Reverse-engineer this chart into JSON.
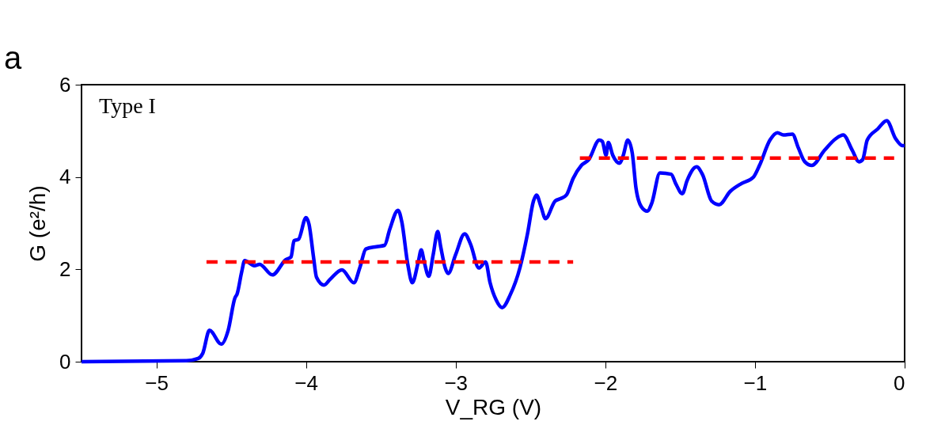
{
  "chart_data": {
    "type": "line",
    "xlabel": "V_RG (V)",
    "ylabel": "G (e²/h)",
    "annotations": [
      "a",
      "Type I"
    ],
    "xlim": [
      -5.5,
      0
    ],
    "ylim": [
      0,
      6
    ],
    "xticks": [
      {
        "value": -5,
        "label": "−5"
      },
      {
        "value": -4,
        "label": "−4"
      },
      {
        "value": -3,
        "label": "−3"
      },
      {
        "value": -2,
        "label": "−2"
      },
      {
        "value": -1,
        "label": "−1"
      },
      0
    ],
    "yticks": [
      0,
      2,
      4,
      6
    ],
    "grid": false,
    "marker": "none",
    "series": [
      {
        "color": "#0000ff",
        "line_style": "solid",
        "x": [
          -5.5,
          -4.8,
          -4.72,
          -4.69,
          -4.645,
          -4.566,
          -4.52,
          -4.475,
          -4.46,
          -4.43,
          -4.41,
          -4.345,
          -4.31,
          -4.225,
          -4.135,
          -4.1,
          -4.08,
          -4.05,
          -4.0,
          -3.98,
          -3.95,
          -3.93,
          -3.88,
          -3.84,
          -3.76,
          -3.68,
          -3.64,
          -3.6,
          -3.53,
          -3.475,
          -3.44,
          -3.385,
          -3.36,
          -3.32,
          -3.29,
          -3.25,
          -3.23,
          -3.21,
          -3.18,
          -3.15,
          -3.12,
          -3.1,
          -3.07,
          -3.05,
          -3.0,
          -2.94,
          -2.9,
          -2.845,
          -2.8,
          -2.77,
          -2.73,
          -2.69,
          -2.635,
          -2.57,
          -2.52,
          -2.48,
          -2.46,
          -2.43,
          -2.4,
          -2.335,
          -2.3,
          -2.26,
          -2.215,
          -2.16,
          -2.11,
          -2.04,
          -2.02,
          -1.995,
          -1.98,
          -1.95,
          -1.905,
          -1.88,
          -1.85,
          -1.82,
          -1.795,
          -1.76,
          -1.72,
          -1.69,
          -1.635,
          -1.56,
          -1.53,
          -1.485,
          -1.454,
          -1.39,
          -1.35,
          -1.29,
          -1.24,
          -1.165,
          -1.09,
          -1.01,
          -0.97,
          -0.9,
          -0.85,
          -0.81,
          -0.75,
          -0.71,
          -0.667,
          -0.62,
          -0.535,
          -0.46,
          -0.41,
          -0.35,
          -0.305,
          -0.28,
          -0.25,
          -0.18,
          -0.12,
          -0.06,
          -0.015,
          0
        ],
        "values": [
          0,
          0.02,
          0.07,
          0.18,
          0.68,
          0.38,
          0.68,
          1.38,
          1.47,
          1.94,
          2.19,
          2.08,
          2.11,
          1.88,
          2.21,
          2.27,
          2.62,
          2.65,
          3.12,
          2.98,
          2.27,
          1.83,
          1.66,
          1.78,
          1.99,
          1.71,
          2.04,
          2.44,
          2.49,
          2.52,
          2.87,
          3.28,
          3.03,
          2.11,
          1.71,
          2.16,
          2.42,
          2.16,
          1.85,
          2.32,
          2.82,
          2.49,
          2.03,
          1.91,
          2.32,
          2.77,
          2.54,
          2.03,
          2.16,
          1.71,
          1.34,
          1.17,
          1.45,
          2.04,
          2.77,
          3.48,
          3.61,
          3.36,
          3.1,
          3.48,
          3.53,
          3.61,
          3.97,
          4.25,
          4.38,
          4.8,
          4.77,
          4.47,
          4.75,
          4.47,
          4.3,
          4.47,
          4.8,
          4.52,
          3.76,
          3.36,
          3.26,
          3.43,
          4.09,
          4.06,
          3.86,
          3.64,
          3.92,
          4.22,
          4.05,
          3.48,
          3.4,
          3.69,
          3.86,
          4.0,
          4.25,
          4.8,
          4.96,
          4.91,
          4.93,
          4.63,
          4.33,
          4.25,
          4.58,
          4.83,
          4.91,
          4.58,
          4.33,
          4.38,
          4.8,
          5.04,
          5.22,
          4.83,
          4.68,
          4.68
        ]
      },
      {
        "color": "#ff0000",
        "line_style": "dashed",
        "x": [
          -4.665,
          -2.215
        ],
        "values": [
          2.16,
          2.16
        ]
      },
      {
        "color": "#ff0000",
        "line_style": "dashed",
        "x": [
          -2.17,
          -0.07
        ],
        "values": [
          4.41,
          4.41
        ]
      }
    ]
  }
}
